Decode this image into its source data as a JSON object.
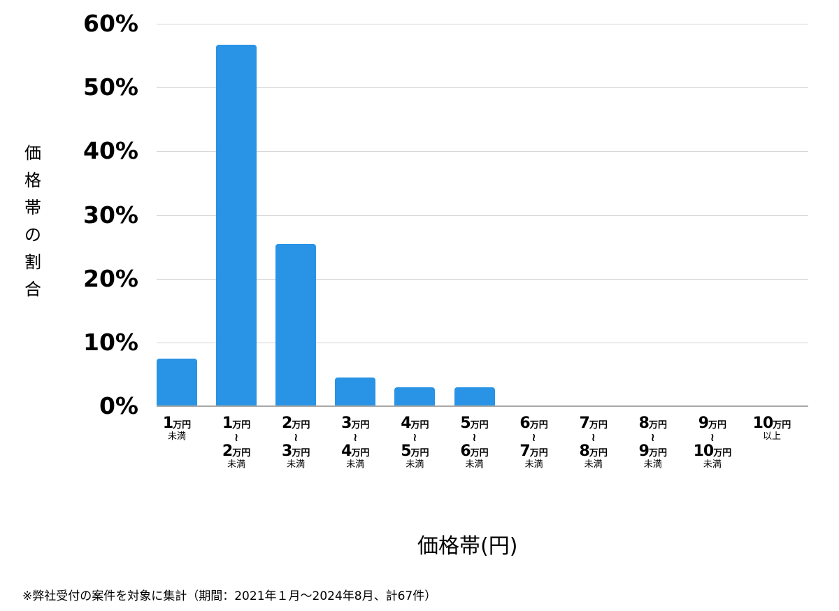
{
  "chart_data": {
    "type": "bar",
    "title": "",
    "xlabel": "価格帯(円)",
    "ylabel": "価格帯の割合",
    "ylim": [
      0,
      60
    ],
    "yticks": [
      "0%",
      "10%",
      "20%",
      "30%",
      "40%",
      "50%",
      "60%"
    ],
    "grid": true,
    "bar_color": "#2993e5",
    "categories": [
      "1万円未満",
      "1万円〜2万円未満",
      "2万円〜3万円未満",
      "3万円〜4万円未満",
      "4万円〜5万円未満",
      "5万円〜6万円未満",
      "6万円〜7万円未満",
      "7万円〜8万円未満",
      "8万円〜9万円未満",
      "9万円〜10万円未満",
      "10万円以上"
    ],
    "values": [
      7.5,
      56.7,
      25.4,
      4.5,
      3.0,
      3.0,
      0,
      0,
      0,
      0,
      0
    ],
    "footnote": "※弊社受付の案件を対象に集計（期間：2021年１月〜2024年8月、計67件）"
  },
  "axis": {
    "y_ticks": [
      "60%",
      "50%",
      "40%",
      "30%",
      "20%",
      "10%",
      "0%"
    ],
    "y_label_chars": [
      "価",
      "格",
      "帯",
      "の",
      "割",
      "合"
    ],
    "x_title": "価格帯(円)"
  },
  "xcats": [
    {
      "from": "1",
      "to": null,
      "suffix": "未満"
    },
    {
      "from": "1",
      "to": "2",
      "suffix": "未満"
    },
    {
      "from": "2",
      "to": "3",
      "suffix": "未満"
    },
    {
      "from": "3",
      "to": "4",
      "suffix": "未満"
    },
    {
      "from": "4",
      "to": "5",
      "suffix": "未満"
    },
    {
      "from": "5",
      "to": "6",
      "suffix": "未満"
    },
    {
      "from": "6",
      "to": "7",
      "suffix": "未満"
    },
    {
      "from": "7",
      "to": "8",
      "suffix": "未満"
    },
    {
      "from": "8",
      "to": "9",
      "suffix": "未満"
    },
    {
      "from": "9",
      "to": "10",
      "suffix": "未満"
    },
    {
      "from": "10",
      "to": null,
      "suffix": "以上"
    }
  ],
  "unit": "万円",
  "tilde": "≀",
  "footnote": "※弊社受付の案件を対象に集計（期間：2021年１月〜2024年8月、計67件）"
}
